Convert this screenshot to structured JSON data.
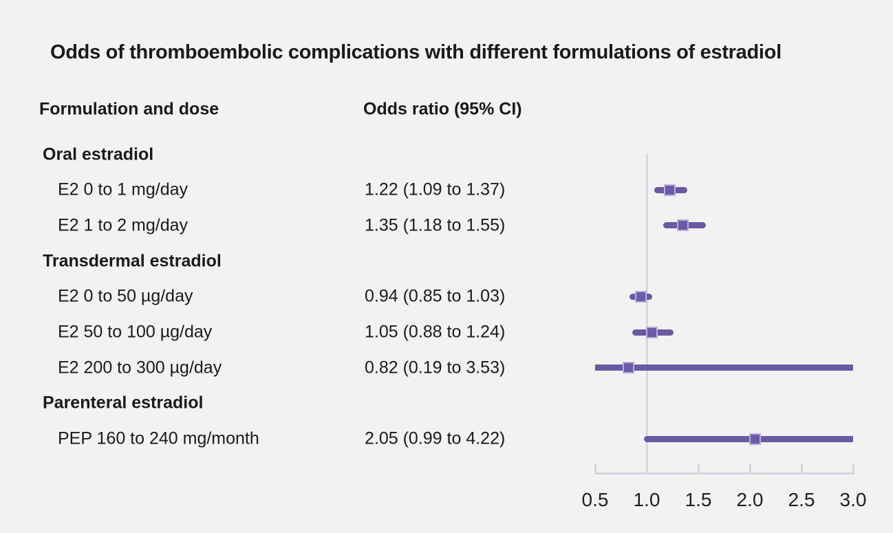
{
  "title": "Odds of thromboembolic complications with different formulations of estradiol",
  "columns": {
    "left": "Formulation and dose",
    "right": "Odds ratio (95% CI)"
  },
  "colors": {
    "background": "#f2f2f2",
    "text": "#1a1a1a",
    "ci_line": "#6a59a3",
    "marker_fill": "#6c5ba6",
    "marker_border": "#b9aed9",
    "axis": "#d2d7de",
    "reference_line": "#d6d8e0"
  },
  "chart_data": {
    "type": "forest",
    "title": "Odds of thromboembolic complications with different formulations of estradiol",
    "xlabel": "",
    "ylabel": "",
    "axis": {
      "scale": "linear",
      "min": 0.5,
      "max": 3.0,
      "ticks": [
        0.5,
        1.0,
        1.5,
        2.0,
        2.5,
        3.0
      ],
      "tick_labels": [
        "0.5",
        "1.0",
        "1.5",
        "2.0",
        "2.5",
        "3.0"
      ],
      "reference_value": 1.0,
      "grid": false
    },
    "rows": [
      {
        "kind": "group",
        "label": "Oral estradiol"
      },
      {
        "kind": "item",
        "label": "E2 0 to 1 mg/day",
        "or_text": "1.22 (1.09 to 1.37)",
        "estimate": 1.22,
        "ci_low": 1.09,
        "ci_high": 1.37
      },
      {
        "kind": "item",
        "label": "E2 1 to 2 mg/day",
        "or_text": "1.35 (1.18 to 1.55)",
        "estimate": 1.35,
        "ci_low": 1.18,
        "ci_high": 1.55
      },
      {
        "kind": "group",
        "label": "Transdermal estradiol"
      },
      {
        "kind": "item",
        "label": "E2 0 to 50 µg/day",
        "or_text": "0.94 (0.85 to 1.03)",
        "estimate": 0.94,
        "ci_low": 0.85,
        "ci_high": 1.03
      },
      {
        "kind": "item",
        "label": "E2 50 to 100 µg/day",
        "or_text": "1.05 (0.88 to 1.24)",
        "estimate": 1.05,
        "ci_low": 0.88,
        "ci_high": 1.24
      },
      {
        "kind": "item",
        "label": "E2 200 to 300 µg/day",
        "or_text": "0.82 (0.19 to 3.53)",
        "estimate": 0.82,
        "ci_low": 0.19,
        "ci_high": 3.53
      },
      {
        "kind": "group",
        "label": "Parenteral estradiol"
      },
      {
        "kind": "item",
        "label": "PEP 160 to 240 mg/month",
        "or_text": "2.05 (0.99 to 4.22)",
        "estimate": 2.05,
        "ci_low": 0.99,
        "ci_high": 4.22
      }
    ]
  }
}
